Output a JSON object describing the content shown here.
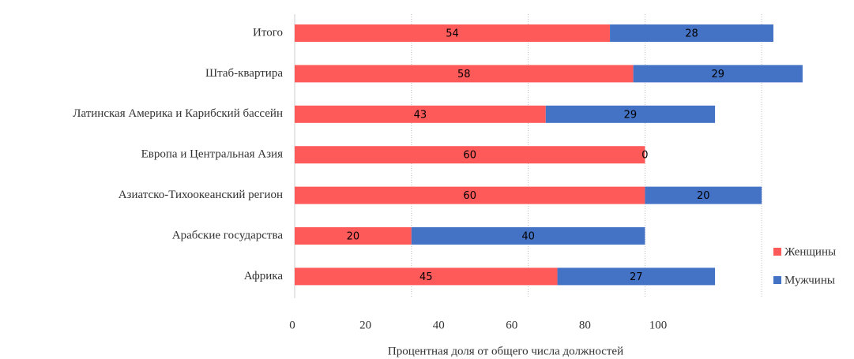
{
  "chart_data": {
    "type": "stacked-bar-horizontal",
    "categories": [
      "Итого",
      "Штаб-квартира",
      "Латинская  Америка и Карибский бассейн",
      "Европа и Центральная Азия",
      "Азиатско-Тихоокеанский  регион",
      "Арабские государства",
      "Африка"
    ],
    "series": [
      {
        "name": "Женщины",
        "color": "#ff5a5a",
        "values": [
          54,
          58,
          43,
          60,
          60,
          20,
          45
        ]
      },
      {
        "name": "Мужчины",
        "color": "#4472c4",
        "values": [
          28,
          29,
          29,
          0,
          20,
          40,
          27
        ]
      }
    ],
    "xlim": [
      0,
      100
    ],
    "xticks": [
      0,
      20,
      40,
      60,
      80,
      100
    ],
    "xlabel": "Процентная доля от общего числа должностей",
    "grid": true,
    "legend": "right"
  }
}
